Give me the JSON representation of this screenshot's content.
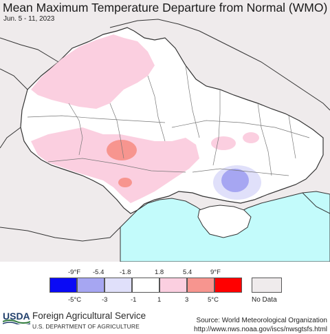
{
  "title": "Mean Maximum Temperature Departure from Normal (WMO)",
  "subtitle": "Jun. 5 - 11, 2023",
  "legend": {
    "fahrenheit_ticks": [
      "-9°F",
      "-5.4",
      "-1.8",
      "1.8",
      "5.4",
      "9°F"
    ],
    "celsius_ticks": [
      "-5°C",
      "-3",
      "-1",
      "1",
      "3",
      "5°C"
    ],
    "classes": [
      {
        "color": "#0a0af5",
        "range": "< -5°C"
      },
      {
        "color": "#a6a6f2",
        "range": "-5 to -3°C"
      },
      {
        "color": "#e0e0fa",
        "range": "-3 to -1°C"
      },
      {
        "color": "#ffffff",
        "range": "-1 to 1°C"
      },
      {
        "color": "#fbcfe0",
        "range": "1 to 3°C"
      },
      {
        "color": "#f7958f",
        "range": "3 to 5°C"
      },
      {
        "color": "#ff0000",
        "range": "> 5°C"
      }
    ],
    "no_data_label": "No Data",
    "no_data_color": "#efebec"
  },
  "colors": {
    "sea": "#c3fbfb",
    "no_data": "#efebec",
    "border": "#444444"
  },
  "footer": {
    "usda_logo_text": "USDA",
    "agency": "Foreign Agricultural Service",
    "department": "U.S. DEPARTMENT OF AGRICULTURE",
    "source": "Source: World Meteorological Organization",
    "url": "http://www.nws.noaa.gov/iscs/nwsgtsfs.html"
  }
}
